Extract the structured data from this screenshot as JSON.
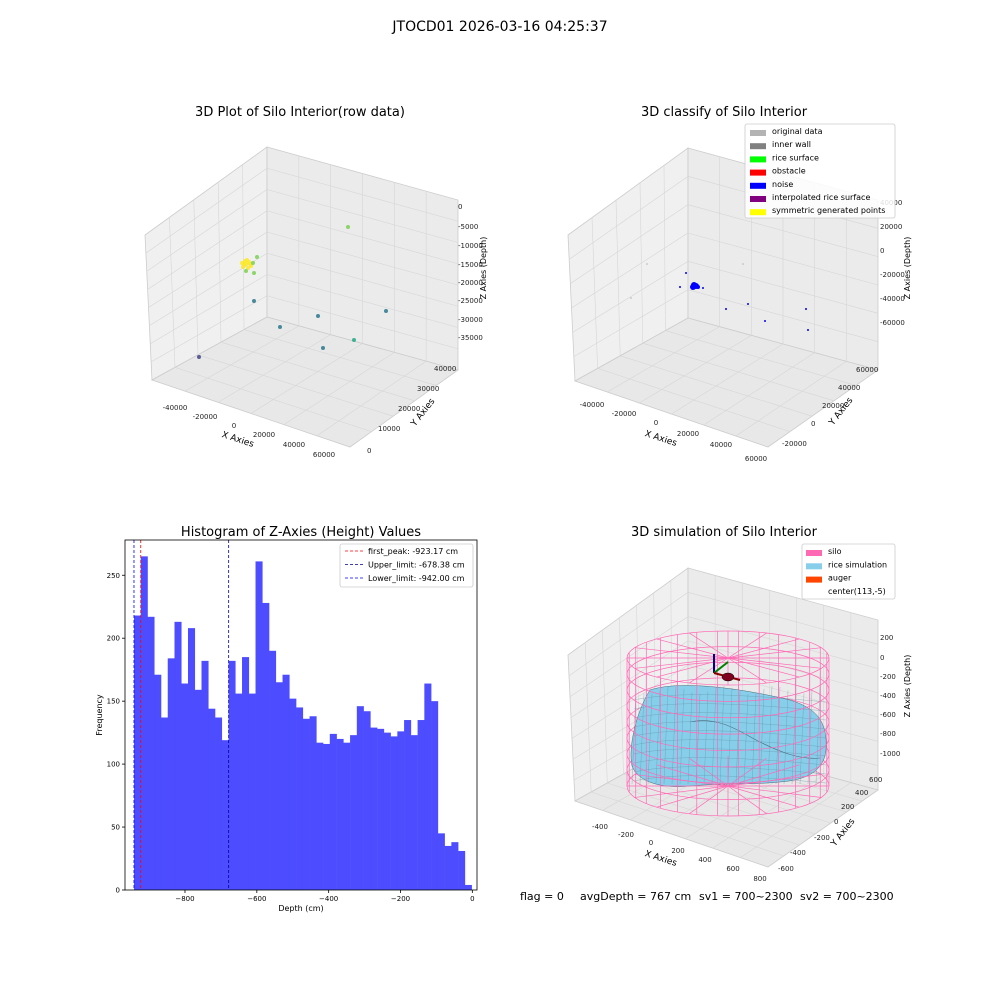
{
  "figure": {
    "title": "JTOCD01 2026-03-16 04:25:37",
    "status_line": {
      "flag": "flag = 0",
      "avg_depth": "avgDepth = 767 cm",
      "sv1": "sv1 = 700~2300",
      "sv2": "sv2 = 700~2300"
    }
  },
  "chart_data": [
    {
      "type": "scatter",
      "subtype": "3d",
      "title": "3D Plot of Silo Interior(row data)",
      "xlabel": "X Axies",
      "ylabel": "Y Axies",
      "zlabel": "Z Axies (Depth)",
      "x_ticks": [
        "-40000",
        "-20000",
        "0",
        "20000",
        "40000",
        "60000"
      ],
      "y_ticks": [
        "0",
        "10000",
        "20000",
        "30000",
        "40000"
      ],
      "z_ticks": [
        "0",
        "-5000",
        "-10000",
        "-15000",
        "-20000",
        "-25000",
        "-30000",
        "-35000"
      ],
      "colormap": "viridis",
      "point_colors": [
        "#fde725",
        "#7ad151",
        "#22a884",
        "#2a788e",
        "#414487",
        "#440154"
      ]
    },
    {
      "type": "scatter",
      "subtype": "3d",
      "title": "3D classify of Silo Interior",
      "xlabel": "X Axies",
      "ylabel": "Y Axies",
      "zlabel": "Z Axies (Depth)",
      "x_ticks": [
        "-40000",
        "-20000",
        "0",
        "20000",
        "40000",
        "60000"
      ],
      "y_ticks": [
        "-20000",
        "0",
        "20000",
        "40000",
        "60000"
      ],
      "z_ticks": [
        "40000",
        "20000",
        "0",
        "-20000",
        "-40000",
        "-60000"
      ],
      "legend_position": "top-right",
      "legend": [
        {
          "label": "original data",
          "color": "#b3b3b3"
        },
        {
          "label": "inner wall",
          "color": "#808080"
        },
        {
          "label": "rice surface",
          "color": "#00ff00"
        },
        {
          "label": "obstacle",
          "color": "#ff0000"
        },
        {
          "label": "noise",
          "color": "#0000ff"
        },
        {
          "label": "interpolated rice surface",
          "color": "#800080"
        },
        {
          "label": "symmetric generated points",
          "color": "#ffff00"
        }
      ]
    },
    {
      "type": "bar",
      "subtype": "histogram",
      "title": "Histogram of Z-Axies (Height) Values",
      "xlabel": "Depth (cm)",
      "ylabel": "Frequency",
      "xlim": [
        -967,
        13
      ],
      "ylim": [
        0,
        278
      ],
      "x_ticks": [
        -800,
        -600,
        -400,
        -200,
        0
      ],
      "x_tick_labels": [
        "−800",
        "−600",
        "−400",
        "−200",
        "0"
      ],
      "y_ticks": [
        0,
        50,
        100,
        150,
        200,
        250
      ],
      "bin_start": -942,
      "bin_width": 18.8,
      "values": [
        218,
        265,
        217,
        171,
        137,
        184,
        213,
        164,
        208,
        159,
        182,
        144,
        137,
        119,
        182,
        156,
        185,
        156,
        261,
        228,
        190,
        165,
        171,
        152,
        145,
        136,
        138,
        117,
        116,
        124,
        120,
        117,
        123,
        146,
        142,
        129,
        128,
        125,
        122,
        126,
        135,
        123,
        135,
        164,
        150,
        45,
        35,
        38,
        31,
        4
      ],
      "bar_color": "#4d4dff",
      "legend_position": "top-right",
      "vlines": [
        {
          "label": "first_peak: -923.17 cm",
          "x": -923.17,
          "color": "#ff0000"
        },
        {
          "label": "Upper_limit: -678.38 cm",
          "x": -678.38,
          "color": "#000099"
        },
        {
          "label": "Lower_limit: -942.00 cm",
          "x": -942.0,
          "color": "#0000ff"
        }
      ]
    },
    {
      "type": "other",
      "subtype": "3d-surface",
      "title": "3D simulation of Silo Interior",
      "xlabel": "X Axies",
      "ylabel": "Y Axies",
      "zlabel": "Z Axies (Depth)",
      "x_ticks": [
        "-400",
        "-200",
        "0",
        "200",
        "400",
        "600",
        "800"
      ],
      "y_ticks": [
        "-600",
        "-400",
        "-200",
        "0",
        "200",
        "400",
        "600"
      ],
      "z_ticks": [
        "200",
        "0",
        "-200",
        "-400",
        "-600",
        "-800",
        "-1000"
      ],
      "legend_position": "top-right",
      "legend": [
        {
          "label": "silo",
          "color": "#ff69b4"
        },
        {
          "label": "rice simulation",
          "color": "#87ceeb"
        },
        {
          "label": "auger",
          "color": "#ff4500"
        },
        {
          "label": "center(113,-5)",
          "color": "#ffffff"
        }
      ]
    }
  ]
}
